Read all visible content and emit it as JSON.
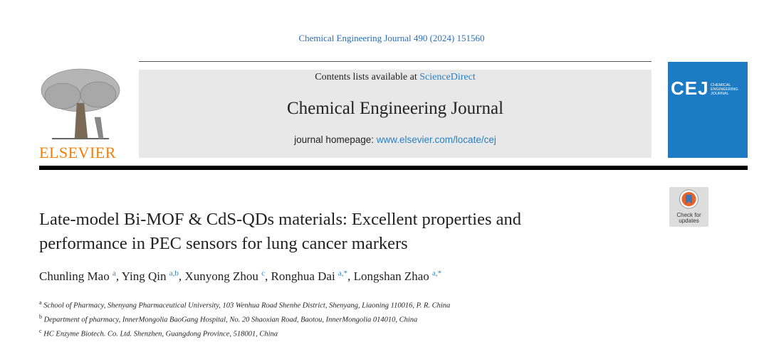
{
  "journal_ref": "Chemical Engineering Journal 490 (2024) 151560",
  "banner": {
    "contents_prefix": "Contents lists available at",
    "contents_link": "ScienceDirect",
    "journal_name": "Chemical Engineering Journal",
    "homepage_prefix": "journal homepage:",
    "homepage_link": "www.elsevier.com/locate/cej"
  },
  "publisher": "ELSEVIER",
  "cover": {
    "logo": "CEJ",
    "lines": [
      "CHEMICAL",
      "ENGINEERING",
      "JOURNAL"
    ]
  },
  "badge": [
    "Check for",
    "updates"
  ],
  "title": [
    "Late-model Bi-MOF & CdS-QDs materials: Excellent properties and",
    "performance in PEC sensors for lung cancer markers"
  ],
  "authors": [
    {
      "name": "Chunling Mao",
      "affil": "a"
    },
    {
      "name": "Ying Qin",
      "affil": "a,b"
    },
    {
      "name": "Xunyong Zhou",
      "affil": "c"
    },
    {
      "name": "Ronghua Dai",
      "affil": "a,*"
    },
    {
      "name": "Longshan Zhao",
      "affil": "a,*"
    }
  ],
  "affiliations": [
    {
      "mark": "a",
      "text": "School of Pharmacy, Shenyang Pharmaceutical University, 103 Wenhua Road Shenhe District, Shenyang, Liaoning 110016, P. R. China"
    },
    {
      "mark": "b",
      "text": "Department of pharmacy, InnerMongolia BaoGang Hospital, No. 20 Shaoxian Road, Baotou, InnerMongolia 014010, China"
    },
    {
      "mark": "c",
      "text": "HC Enzyme Biotech. Co. Ltd. Shenzhen, Guangdong Province, 518001, China"
    }
  ]
}
